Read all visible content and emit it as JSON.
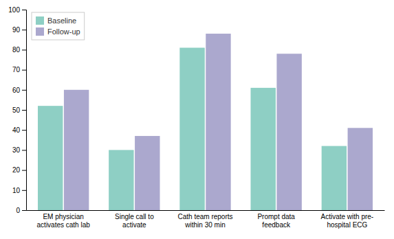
{
  "chart_data": {
    "type": "bar",
    "categories": [
      "EM physician\nactivates cath lab",
      "Single call to\nactivate",
      "Cath team reports\nwithin 30 min",
      "Prompt data\nfeedback",
      "Activate with pre-\nhospital ECG"
    ],
    "series": [
      {
        "name": "Baseline",
        "color": "#8ecfc4",
        "values": [
          52,
          30,
          81,
          61,
          32
        ]
      },
      {
        "name": "Follow-up",
        "color": "#aba8ce",
        "values": [
          60,
          37,
          88,
          78,
          41
        ]
      }
    ],
    "ylim": [
      0,
      100
    ],
    "yticks": [
      0,
      10,
      20,
      30,
      40,
      50,
      60,
      70,
      80,
      90,
      100
    ],
    "grid": false,
    "legend": "upper left"
  }
}
